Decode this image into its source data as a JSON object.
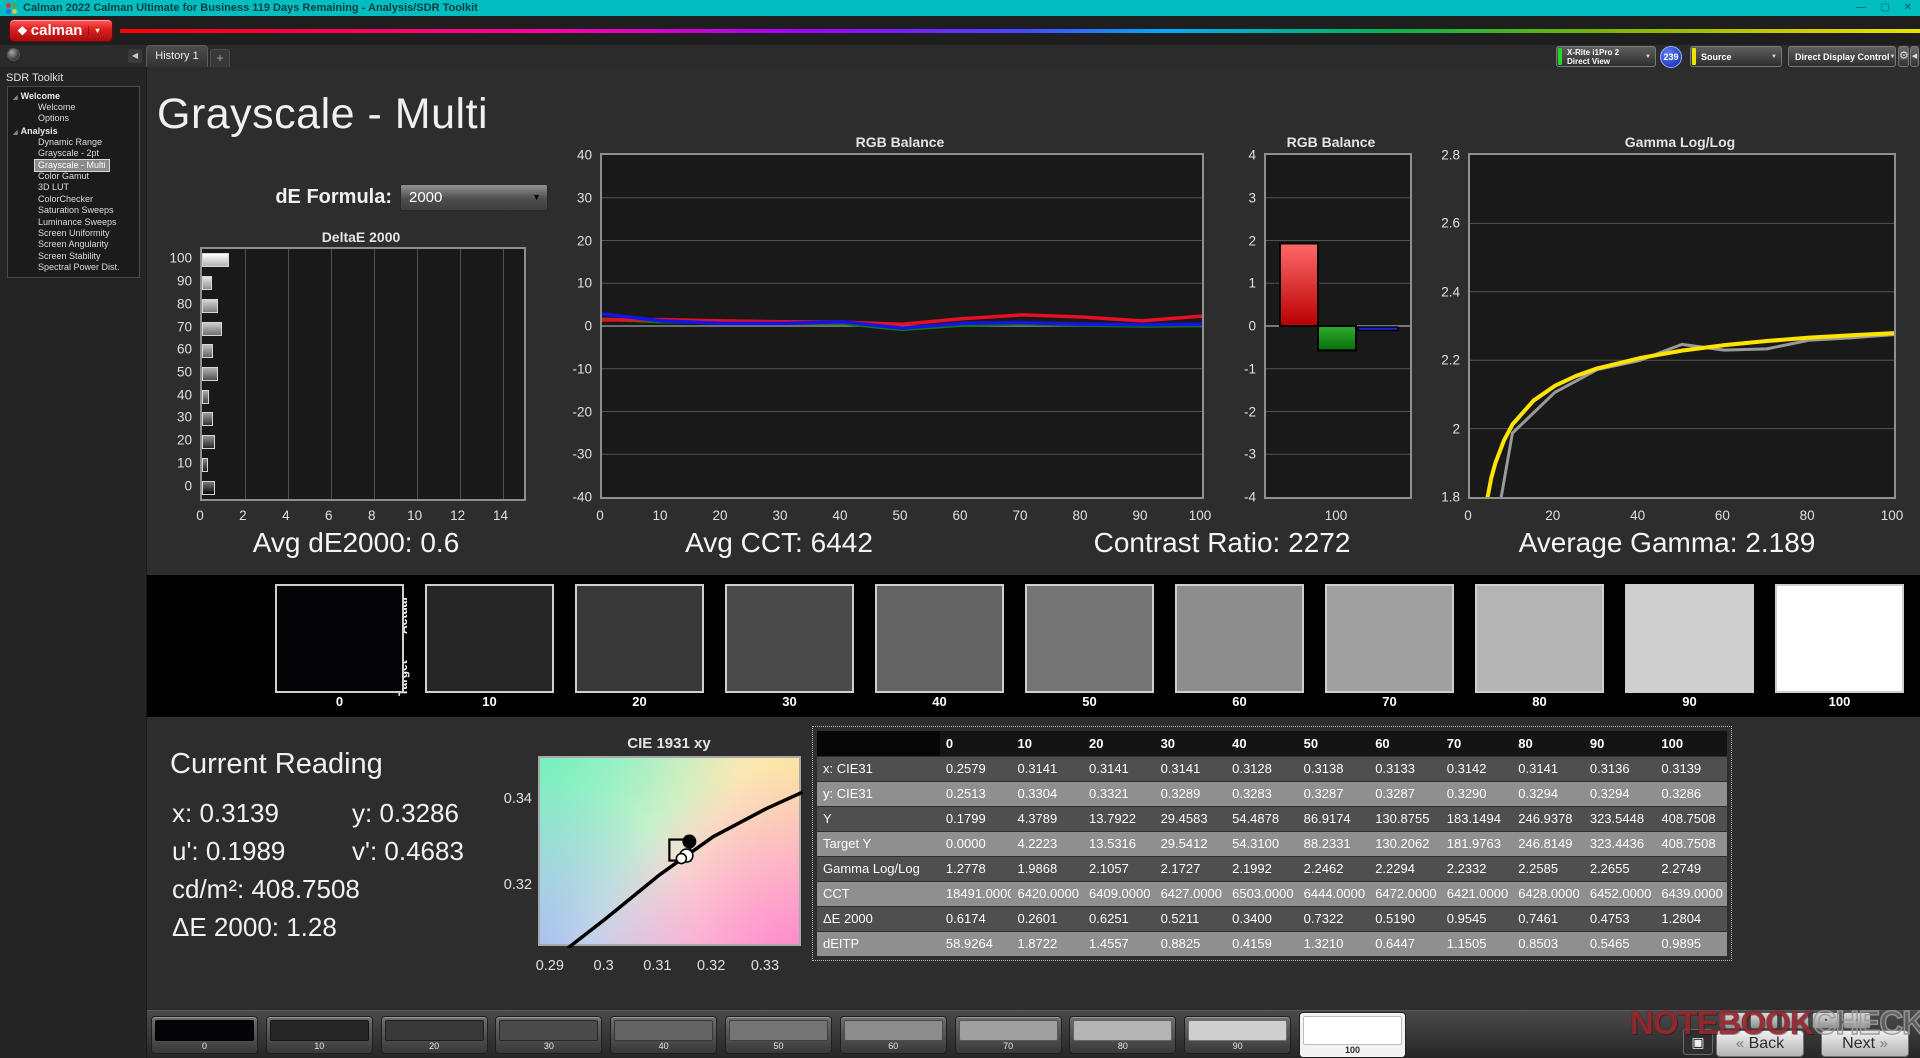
{
  "title_bar": {
    "title": "Calman 2022 Calman Ultimate for Business 119 Days Remaining  - Analysis/SDR Toolkit"
  },
  "icons": {
    "logo_diamond": "❖",
    "small_arrow": "▾",
    "dropdown_arrow": "▼",
    "collapse_left": "◀",
    "gear": "⚙",
    "minimize": "—",
    "maximize": "▢",
    "close": "✕",
    "tree_expander": "◢",
    "square": "▣",
    "back_chevron": "«",
    "next_chevron": "»",
    "transport_glyph": "▪"
  },
  "logo": {
    "text": "calman"
  },
  "tabs": {
    "history_tab": "History 1",
    "add_tab": "+"
  },
  "top_right": {
    "meter_line1": "X-Rite i1Pro 2",
    "meter_line2": "Direct View",
    "meter_badge": "239",
    "source_label": "Source",
    "ddc_label": "Direct Display Control"
  },
  "sidebar": {
    "title": "SDR Toolkit",
    "groups": [
      {
        "label": "Welcome",
        "items": [
          {
            "label": "Welcome"
          },
          {
            "label": "Options"
          }
        ]
      },
      {
        "label": "Analysis",
        "items": [
          {
            "label": "Dynamic Range"
          },
          {
            "label": "Grayscale - 2pt"
          },
          {
            "label": "Grayscale - Multi",
            "selected": true
          },
          {
            "label": "Color Gamut"
          },
          {
            "label": "3D LUT"
          },
          {
            "label": "ColorChecker"
          },
          {
            "label": "Saturation Sweeps"
          },
          {
            "label": "Luminance Sweeps"
          },
          {
            "label": "Screen Uniformity"
          },
          {
            "label": "Screen Angularity"
          },
          {
            "label": "Screen Stability"
          },
          {
            "label": "Spectral Power Dist."
          }
        ]
      }
    ]
  },
  "main": {
    "page_title": "Grayscale - Multi",
    "de_formula_label": "dE Formula:",
    "de_formula_value": "2000",
    "summary": [
      "Avg dE2000: 0.6",
      "Avg CCT: 6442",
      "Contrast Ratio: 2272",
      "Average Gamma: 2.189"
    ]
  },
  "chart_data": [
    {
      "id": "deltae",
      "type": "bar",
      "orientation": "horizontal",
      "title": "DeltaE 2000",
      "categories": [
        100,
        90,
        80,
        70,
        60,
        50,
        40,
        30,
        20,
        10,
        0
      ],
      "values": [
        1.2804,
        0.4753,
        0.7461,
        0.9545,
        0.519,
        0.7322,
        0.34,
        0.5211,
        0.6251,
        0.2601,
        0.6174
      ],
      "bar_colors": [
        "#ffffff",
        "#cfcfcf",
        "#b4b4b4",
        "#a0a0a0",
        "#8d8d8d",
        "#747474",
        "#636363",
        "#4a4a4a",
        "#383838",
        "#262626",
        "#0a0a0c"
      ],
      "xlim": [
        0,
        15
      ],
      "x_ticks": [
        0,
        2,
        4,
        6,
        8,
        10,
        12,
        14
      ],
      "grid": true
    },
    {
      "id": "rgb_balance_line",
      "type": "line",
      "title": "RGB Balance",
      "x": [
        0,
        10,
        20,
        30,
        40,
        50,
        60,
        70,
        80,
        90,
        100
      ],
      "series": [
        {
          "name": "green",
          "color": "#0f7b0f",
          "values": [
            1.6,
            1.0,
            0.9,
            0.7,
            0.6,
            -0.8,
            0.2,
            0.5,
            0.2,
            0.0,
            0.1
          ]
        },
        {
          "name": "red",
          "color": "#e81123",
          "values": [
            1.4,
            1.5,
            1.2,
            1.0,
            0.9,
            0.4,
            1.7,
            2.6,
            2.1,
            1.2,
            2.3
          ]
        },
        {
          "name": "blue",
          "color": "#1414e8",
          "values": [
            2.8,
            1.2,
            0.6,
            0.6,
            1.0,
            -0.5,
            0.6,
            0.8,
            0.4,
            0.3,
            0.4
          ]
        }
      ],
      "ylim": [
        -40,
        40
      ],
      "y_ticks": [
        40,
        30,
        20,
        10,
        0,
        -10,
        -20,
        -30,
        -40
      ],
      "x_ticks": [
        0,
        10,
        20,
        30,
        40,
        50,
        60,
        70,
        80,
        90,
        100
      ],
      "grid": true
    },
    {
      "id": "rgb_balance_bar",
      "type": "bar",
      "title": "RGB Balance",
      "categories": [
        "red",
        "green",
        "blue"
      ],
      "values": [
        1.93,
        -0.57,
        -0.08
      ],
      "bar_colors": [
        "#dd1111",
        "#169416",
        "#1428e6"
      ],
      "x_label": "100",
      "ylim": [
        -4,
        4
      ],
      "y_ticks": [
        4,
        3,
        2,
        1,
        0,
        -1,
        -2,
        -3,
        -4
      ],
      "grid": true
    },
    {
      "id": "gamma_loglog",
      "type": "line",
      "title": "Gamma Log/Log",
      "series": [
        {
          "name": "measured",
          "color": "#9a9a9a",
          "x": [
            0,
            10,
            20,
            30,
            40,
            50,
            60,
            70,
            80,
            90,
            100
          ],
          "values": [
            1.2778,
            1.9868,
            2.1057,
            2.1727,
            2.1992,
            2.2462,
            2.2294,
            2.2332,
            2.2585,
            2.2655,
            2.2749
          ]
        },
        {
          "name": "target",
          "color": "#ffe400",
          "x": [
            3,
            4,
            5,
            6,
            8,
            10,
            15,
            20,
            25,
            30,
            40,
            50,
            60,
            70,
            80,
            90,
            100
          ],
          "values": [
            1.7,
            1.79,
            1.855,
            1.9,
            1.965,
            2.012,
            2.082,
            2.125,
            2.154,
            2.176,
            2.206,
            2.228,
            2.244,
            2.256,
            2.266,
            2.273,
            2.279
          ]
        }
      ],
      "ylim": [
        1.8,
        2.8
      ],
      "y_ticks": [
        2.8,
        2.6,
        2.4,
        2.2,
        2,
        1.8
      ],
      "x_ticks": [
        0,
        20,
        40,
        60,
        80,
        100
      ],
      "grid": true
    },
    {
      "id": "cie_1931_xy",
      "type": "scatter",
      "title": "CIE 1931 xy",
      "xlim": [
        0.2878,
        0.3367
      ],
      "ylim": [
        0.3057,
        0.3499
      ],
      "x_ticks": [
        0.29,
        0.3,
        0.31,
        0.32,
        0.33
      ],
      "x_tick_labels": [
        "0.29",
        "0.3",
        "0.31",
        "0.32",
        "0.33"
      ],
      "y_ticks": [
        0.34,
        0.32
      ],
      "y_tick_labels": [
        "0.34",
        "0.32"
      ],
      "locus": [
        [
          0.293,
          0.3057
        ],
        [
          0.3,
          0.3125
        ],
        [
          0.31,
          0.3227
        ],
        [
          0.32,
          0.3316
        ],
        [
          0.33,
          0.3382
        ],
        [
          0.3367,
          0.342
        ]
      ],
      "point": {
        "x": 0.3139,
        "y": 0.3286
      }
    }
  ],
  "swatch_strip": {
    "actual_label": "Actual",
    "target_label": "Target",
    "levels": [
      "0",
      "10",
      "20",
      "30",
      "40",
      "50",
      "60",
      "70",
      "80",
      "90",
      "100"
    ],
    "colors": [
      "#050507",
      "#262626",
      "#383838",
      "#4a4a4a",
      "#636363",
      "#747474",
      "#8d8d8d",
      "#a0a0a0",
      "#b4b4b4",
      "#cfcfcf",
      "#ffffff"
    ]
  },
  "current_reading": {
    "title": "Current Reading",
    "x": "x: 0.3139",
    "y": "y: 0.3286",
    "u": "u': 0.1989",
    "v": "v': 0.4683",
    "cd": "cd/m²: 408.7508",
    "de": "ΔE 2000: 1.28"
  },
  "table": {
    "columns": [
      "0",
      "10",
      "20",
      "30",
      "40",
      "50",
      "60",
      "70",
      "80",
      "90",
      "100"
    ],
    "rows": [
      {
        "label": "x: CIE31",
        "values": [
          "0.2579",
          "0.3141",
          "0.3141",
          "0.3141",
          "0.3128",
          "0.3138",
          "0.3133",
          "0.3142",
          "0.3141",
          "0.3136",
          "0.3139"
        ]
      },
      {
        "label": "y: CIE31",
        "values": [
          "0.2513",
          "0.3304",
          "0.3321",
          "0.3289",
          "0.3283",
          "0.3287",
          "0.3287",
          "0.3290",
          "0.3294",
          "0.3294",
          "0.3286"
        ]
      },
      {
        "label": "Y",
        "values": [
          "0.1799",
          "4.3789",
          "13.7922",
          "29.4583",
          "54.4878",
          "86.9174",
          "130.8755",
          "183.1494",
          "246.9378",
          "323.5448",
          "408.7508"
        ]
      },
      {
        "label": "Target Y",
        "values": [
          "0.0000",
          "4.2223",
          "13.5316",
          "29.5412",
          "54.3100",
          "88.2331",
          "130.2062",
          "181.9763",
          "246.8149",
          "323.4436",
          "408.7508"
        ]
      },
      {
        "label": "Gamma Log/Log",
        "values": [
          "1.2778",
          "1.9868",
          "2.1057",
          "2.1727",
          "2.1992",
          "2.2462",
          "2.2294",
          "2.2332",
          "2.2585",
          "2.2655",
          "2.2749"
        ]
      },
      {
        "label": "CCT",
        "values": [
          "18491.0000",
          "6420.0000",
          "6409.0000",
          "6427.0000",
          "6503.0000",
          "6444.0000",
          "6472.0000",
          "6421.0000",
          "6428.0000",
          "6452.0000",
          "6439.0000"
        ]
      },
      {
        "label": "ΔE 2000",
        "values": [
          "0.6174",
          "0.2601",
          "0.6251",
          "0.5211",
          "0.3400",
          "0.7322",
          "0.5190",
          "0.9545",
          "0.7461",
          "0.4753",
          "1.2804"
        ]
      },
      {
        "label": "dEITP",
        "values": [
          "58.9264",
          "1.8722",
          "1.4557",
          "0.8825",
          "0.4159",
          "1.3210",
          "0.6447",
          "1.1505",
          "0.8503",
          "0.5465",
          "0.9895"
        ]
      }
    ]
  },
  "bottom_bar": {
    "levels": [
      "0",
      "10",
      "20",
      "30",
      "40",
      "50",
      "60",
      "70",
      "80",
      "90",
      "100"
    ],
    "selected_index": 10,
    "back_label": "Back",
    "next_label": "Next",
    "transport_count": 5
  },
  "watermark": {
    "part1": "NOTEBOOK",
    "part2": "CHECK"
  }
}
